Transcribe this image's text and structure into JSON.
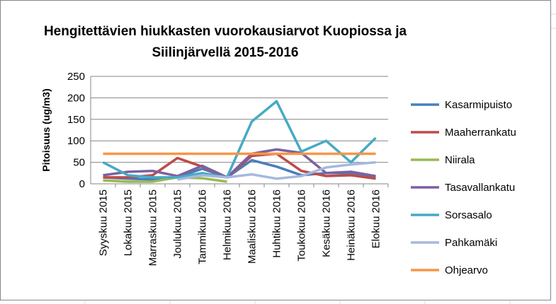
{
  "chart_data": {
    "type": "line",
    "title": [
      "Hengitettävien hiukkasten vuorokausiarvot Kuopiossa ja",
      "Siilinjärvellä  2015-2016"
    ],
    "y_label": "Pitoisuus (ug/m3)",
    "categories": [
      "Syyskuu 2015",
      "Lokakuu 2015",
      "Marraskuu 2015",
      "Joulukuu 2015",
      "Tammikuu 2016",
      "Helmikuu 2016",
      "Maaliskuu 2016",
      "Huhtikuu 2016",
      "Toukokuu 2016",
      "Kesäkuu 2016",
      "Heinäkuu 2016",
      "Elokuu 2016"
    ],
    "series": [
      {
        "name": "Kasarmipuisto",
        "color": "#4a7ebb",
        "values": [
          15,
          12,
          10,
          15,
          35,
          15,
          55,
          40,
          20,
          25,
          25,
          15
        ]
      },
      {
        "name": "Maaherrankatu",
        "color": "#be4b48",
        "values": [
          15,
          15,
          20,
          60,
          40,
          15,
          65,
          70,
          30,
          18,
          20,
          12
        ]
      },
      {
        "name": "Niirala",
        "color": "#98b954",
        "values": [
          8,
          5,
          5,
          15,
          13,
          5,
          null,
          null,
          null,
          null,
          null,
          null
        ]
      },
      {
        "name": "Tasavallankatu",
        "color": "#7d60a0",
        "values": [
          20,
          28,
          30,
          18,
          42,
          15,
          70,
          80,
          72,
          25,
          28,
          18
        ]
      },
      {
        "name": "Sorsasalo",
        "color": "#46aac5",
        "values": [
          50,
          20,
          15,
          15,
          25,
          15,
          145,
          192,
          75,
          100,
          50,
          107
        ]
      },
      {
        "name": "Pahkamäki",
        "color": "#a5b9dd",
        "values": [
          null,
          null,
          null,
          10,
          20,
          15,
          22,
          12,
          18,
          38,
          45,
          50
        ]
      },
      {
        "name": "Ohjearvo",
        "color": "#f79646",
        "values": [
          70,
          70,
          70,
          70,
          70,
          70,
          70,
          70,
          70,
          70,
          70,
          70
        ]
      }
    ],
    "ylim": [
      0,
      250
    ],
    "yticks": [
      0,
      50,
      100,
      150,
      200,
      250
    ],
    "grid": true
  }
}
